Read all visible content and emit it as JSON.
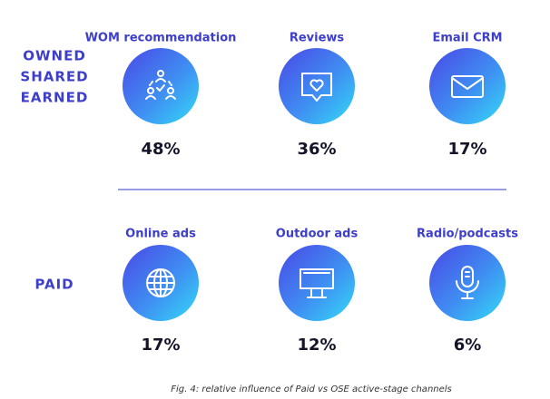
{
  "groups": [
    {
      "label_lines": [
        "OWNED",
        "SHARED",
        "EARNED"
      ],
      "items": [
        {
          "label": "WOM recommendation",
          "value": "48%"
        },
        {
          "label": "Reviews",
          "value": "36%"
        },
        {
          "label": "Email CRM",
          "value": "17%"
        }
      ]
    },
    {
      "label_lines": [
        "PAID"
      ],
      "items": [
        {
          "label": "Online ads",
          "value": "17%"
        },
        {
          "label": "Outdoor ads",
          "value": "12%"
        },
        {
          "label": "Radio/podcasts",
          "value": "6%"
        }
      ]
    }
  ],
  "caption": "Fig. 4: relative influence of Paid vs OSE active-stage channels"
}
